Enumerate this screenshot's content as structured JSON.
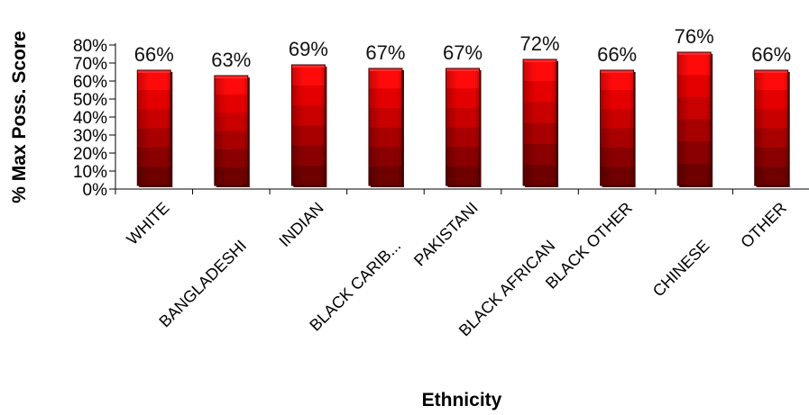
{
  "chart_data": {
    "type": "bar",
    "title": "",
    "xlabel": "Ethnicity",
    "ylabel": "% Max Poss. Score",
    "categories": [
      "WHITE",
      "BANGLADESHI",
      "INDIAN",
      "BLACK CARIB...",
      "PAKISTANI",
      "BLACK AFRICAN",
      "BLACK OTHER",
      "CHINESE",
      "OTHER"
    ],
    "values": [
      66,
      63,
      69,
      67,
      67,
      72,
      66,
      76,
      66
    ],
    "data_labels": [
      "66%",
      "63%",
      "69%",
      "67%",
      "67%",
      "72%",
      "66%",
      "76%",
      "66%"
    ],
    "yticks": [
      0,
      10,
      20,
      30,
      40,
      50,
      60,
      70,
      80
    ],
    "ytick_labels": [
      "0%",
      "10%",
      "20%",
      "30%",
      "40%",
      "50%",
      "60%",
      "70%",
      "80%"
    ],
    "ylim": [
      0,
      80
    ],
    "grid": false,
    "legend": "none",
    "colors": {
      "bar_bands": [
        "#6e0000",
        "#8a0000",
        "#a80000",
        "#c80000",
        "#e40000",
        "#ff0a0a"
      ],
      "bar_top": "#ff2a2a",
      "axis": "#000000"
    }
  }
}
